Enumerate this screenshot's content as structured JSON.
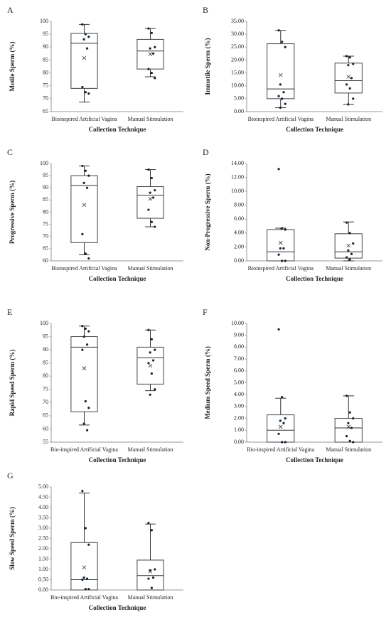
{
  "chart_data": [
    {
      "type": "box",
      "panel": "A",
      "ylabel": "Motile Sperm (%)",
      "xlabel": "Collection Technique",
      "categories": [
        "Bioinspired Artificial Vagina",
        "Manual Stimulation"
      ],
      "ylim": [
        65,
        100
      ],
      "yticks": [
        65,
        70,
        75,
        80,
        85,
        90,
        95,
        100
      ],
      "min": [
        68.7,
        78.5
      ],
      "q1": [
        74,
        81.5
      ],
      "median": [
        91.5,
        88.5
      ],
      "q3": [
        95.3,
        93
      ],
      "max": [
        98.8,
        97.2
      ],
      "mean": [
        85.8,
        87.3
      ],
      "points": [
        [
          98.8,
          95,
          94,
          93,
          89.5,
          74.5,
          72.5,
          72
        ],
        [
          97.2,
          95.5,
          90,
          89.5,
          87.5,
          81.5,
          80,
          78
        ]
      ]
    },
    {
      "type": "box",
      "panel": "B",
      "ylabel": "Immotile Sperm (%)",
      "xlabel": "Collection Technique",
      "categories": [
        "Bioinspired Artificial Vagina",
        "Manual Stimulation"
      ],
      "ylim": [
        0,
        35
      ],
      "yticks": [
        {
          "value": 0,
          "label": "0.00"
        },
        {
          "value": 5,
          "label": "5.00"
        },
        {
          "value": 10,
          "label": "10.00"
        },
        {
          "value": 15,
          "label": "15.00"
        },
        {
          "value": 20,
          "label": "20.00"
        },
        {
          "value": 25,
          "label": "25.00"
        },
        {
          "value": 30,
          "label": "30.00"
        },
        {
          "value": 35,
          "label": "35.00"
        }
      ],
      "min": [
        1.5,
        2.8
      ],
      "q1": [
        5,
        7.2
      ],
      "median": [
        8.8,
        12
      ],
      "q3": [
        26.3,
        18.8
      ],
      "max": [
        31.5,
        21.5
      ],
      "mean": [
        14.2,
        13.5
      ],
      "points": [
        [
          31.5,
          27,
          25,
          10.5,
          7.5,
          6,
          5,
          3,
          1.5
        ],
        [
          21.5,
          21,
          18.5,
          18,
          13,
          10.5,
          9,
          5,
          2.8
        ]
      ]
    },
    {
      "type": "box",
      "panel": "C",
      "ylabel": "Progressive Sperm (%)",
      "xlabel": "Collection Technique",
      "categories": [
        "Bioinspired Artificial Vagina",
        "Manual Stimulation"
      ],
      "ylim": [
        60,
        100
      ],
      "yticks": [
        60,
        65,
        70,
        75,
        80,
        85,
        90,
        95,
        100
      ],
      "min": [
        62.5,
        74
      ],
      "q1": [
        67.5,
        77.5
      ],
      "median": [
        91,
        87
      ],
      "q3": [
        95,
        90.5
      ],
      "max": [
        99,
        97.5
      ],
      "mean": [
        83,
        85.5
      ],
      "points": [
        [
          99,
          97,
          95,
          92,
          90,
          71,
          63,
          61
        ],
        [
          97.5,
          94,
          89,
          88,
          86,
          81,
          76,
          74
        ]
      ]
    },
    {
      "type": "box",
      "panel": "D",
      "ylabel": "Non-Progressive Sperm (%)",
      "xlabel": "Collection Technique",
      "categories": [
        "Bioinspired Artificial Vagina",
        "Manual Stimulation"
      ],
      "ylim": [
        0,
        14
      ],
      "yticks": [
        {
          "value": 0,
          "label": "0.00"
        },
        {
          "value": 2,
          "label": "2.00"
        },
        {
          "value": 4,
          "label": "4.00"
        },
        {
          "value": 6,
          "label": "6.00"
        },
        {
          "value": 8,
          "label": "8.00"
        },
        {
          "value": 10,
          "label": "10.00"
        },
        {
          "value": 12,
          "label": "12.00"
        },
        {
          "value": 14,
          "label": "14.00"
        }
      ],
      "min": [
        0,
        0
      ],
      "q1": [
        0,
        0.4
      ],
      "median": [
        1.3,
        1.3
      ],
      "q3": [
        4.5,
        3.9
      ],
      "max": [
        4.7,
        5.6
      ],
      "mean": [
        2.6,
        2.2
      ],
      "points": [
        [
          13.2,
          4.7,
          4.5,
          1.8,
          1.8,
          0.9,
          0,
          0
        ],
        [
          5.5,
          4,
          2.5,
          1.5,
          1,
          0.5,
          0.2
        ]
      ]
    },
    {
      "type": "box",
      "panel": "E",
      "ylabel": "Rapid Speed Sperm (%)",
      "xlabel": "Collection Technique",
      "categories": [
        "Bio-inspired Artificial Vagina",
        "Manual Stimulation"
      ],
      "ylim": [
        55,
        100
      ],
      "yticks": [
        55,
        60,
        65,
        70,
        75,
        80,
        85,
        90,
        95,
        100
      ],
      "min": [
        61.5,
        74.5
      ],
      "q1": [
        66.5,
        77
      ],
      "median": [
        91,
        87
      ],
      "q3": [
        95,
        91
      ],
      "max": [
        99,
        97.5
      ],
      "mean": [
        83,
        84
      ],
      "points": [
        [
          99,
          98,
          97,
          95,
          92,
          90,
          70.5,
          68,
          62,
          59.5
        ],
        [
          97.5,
          94,
          90,
          89,
          86,
          85,
          81,
          75,
          73
        ]
      ]
    },
    {
      "type": "box",
      "panel": "F",
      "ylabel": "Medium Speed Sperm (%)",
      "xlabel": "Collection Technique",
      "categories": [
        "Bio-inspired Artificial Vagina",
        "Manual Stimulation"
      ],
      "ylim": [
        0,
        10
      ],
      "yticks": [
        {
          "value": 0,
          "label": "0.00"
        },
        {
          "value": 1,
          "label": "1.00"
        },
        {
          "value": 2,
          "label": "2.00"
        },
        {
          "value": 3,
          "label": "3.00"
        },
        {
          "value": 4,
          "label": "4.00"
        },
        {
          "value": 5,
          "label": "5.00"
        },
        {
          "value": 6,
          "label": "6.00"
        },
        {
          "value": 7,
          "label": "7.00"
        },
        {
          "value": 8,
          "label": "8.00"
        },
        {
          "value": 9,
          "label": "9.00"
        },
        {
          "value": 10,
          "label": "10.00"
        }
      ],
      "min": [
        0,
        0
      ],
      "q1": [
        0,
        0
      ],
      "median": [
        1,
        1.2
      ],
      "q3": [
        2.3,
        2
      ],
      "max": [
        3.7,
        3.9
      ],
      "mean": [
        1.3,
        1.3
      ],
      "points": [
        [
          9.5,
          3.8,
          2,
          1.8,
          1.6,
          0.7,
          0,
          0
        ],
        [
          3.9,
          2.5,
          2,
          1.6,
          1.2,
          0.5,
          0.1,
          0
        ]
      ]
    },
    {
      "type": "box",
      "panel": "G",
      "ylabel": "Slow Speed Sperm (%)",
      "xlabel": "Collection Technique",
      "categories": [
        "Bio-inspired Artificial Vagina",
        "Manual Stimulation"
      ],
      "ylim": [
        0,
        5
      ],
      "yticks": [
        {
          "value": 0,
          "label": "0.00"
        },
        {
          "value": 0.5,
          "label": "0.50"
        },
        {
          "value": 1,
          "label": "1.00"
        },
        {
          "value": 1.5,
          "label": "1.50"
        },
        {
          "value": 2,
          "label": "2.00"
        },
        {
          "value": 2.5,
          "label": "2.50"
        },
        {
          "value": 3,
          "label": "3.00"
        },
        {
          "value": 3.5,
          "label": "3.50"
        },
        {
          "value": 4,
          "label": "4.00"
        },
        {
          "value": 4.5,
          "label": "4.50"
        },
        {
          "value": 5,
          "label": "5.00"
        }
      ],
      "min": [
        0,
        0
      ],
      "q1": [
        0,
        0
      ],
      "median": [
        0.5,
        0.7
      ],
      "q3": [
        2.3,
        1.45
      ],
      "max": [
        4.7,
        3.2
      ],
      "mean": [
        1.1,
        0.9
      ],
      "points": [
        [
          4.8,
          3,
          2.2,
          0.6,
          0.55,
          0.5,
          0.05,
          0.05
        ],
        [
          3.25,
          2.9,
          1,
          0.95,
          0.6,
          0.55,
          0.1
        ]
      ]
    }
  ]
}
